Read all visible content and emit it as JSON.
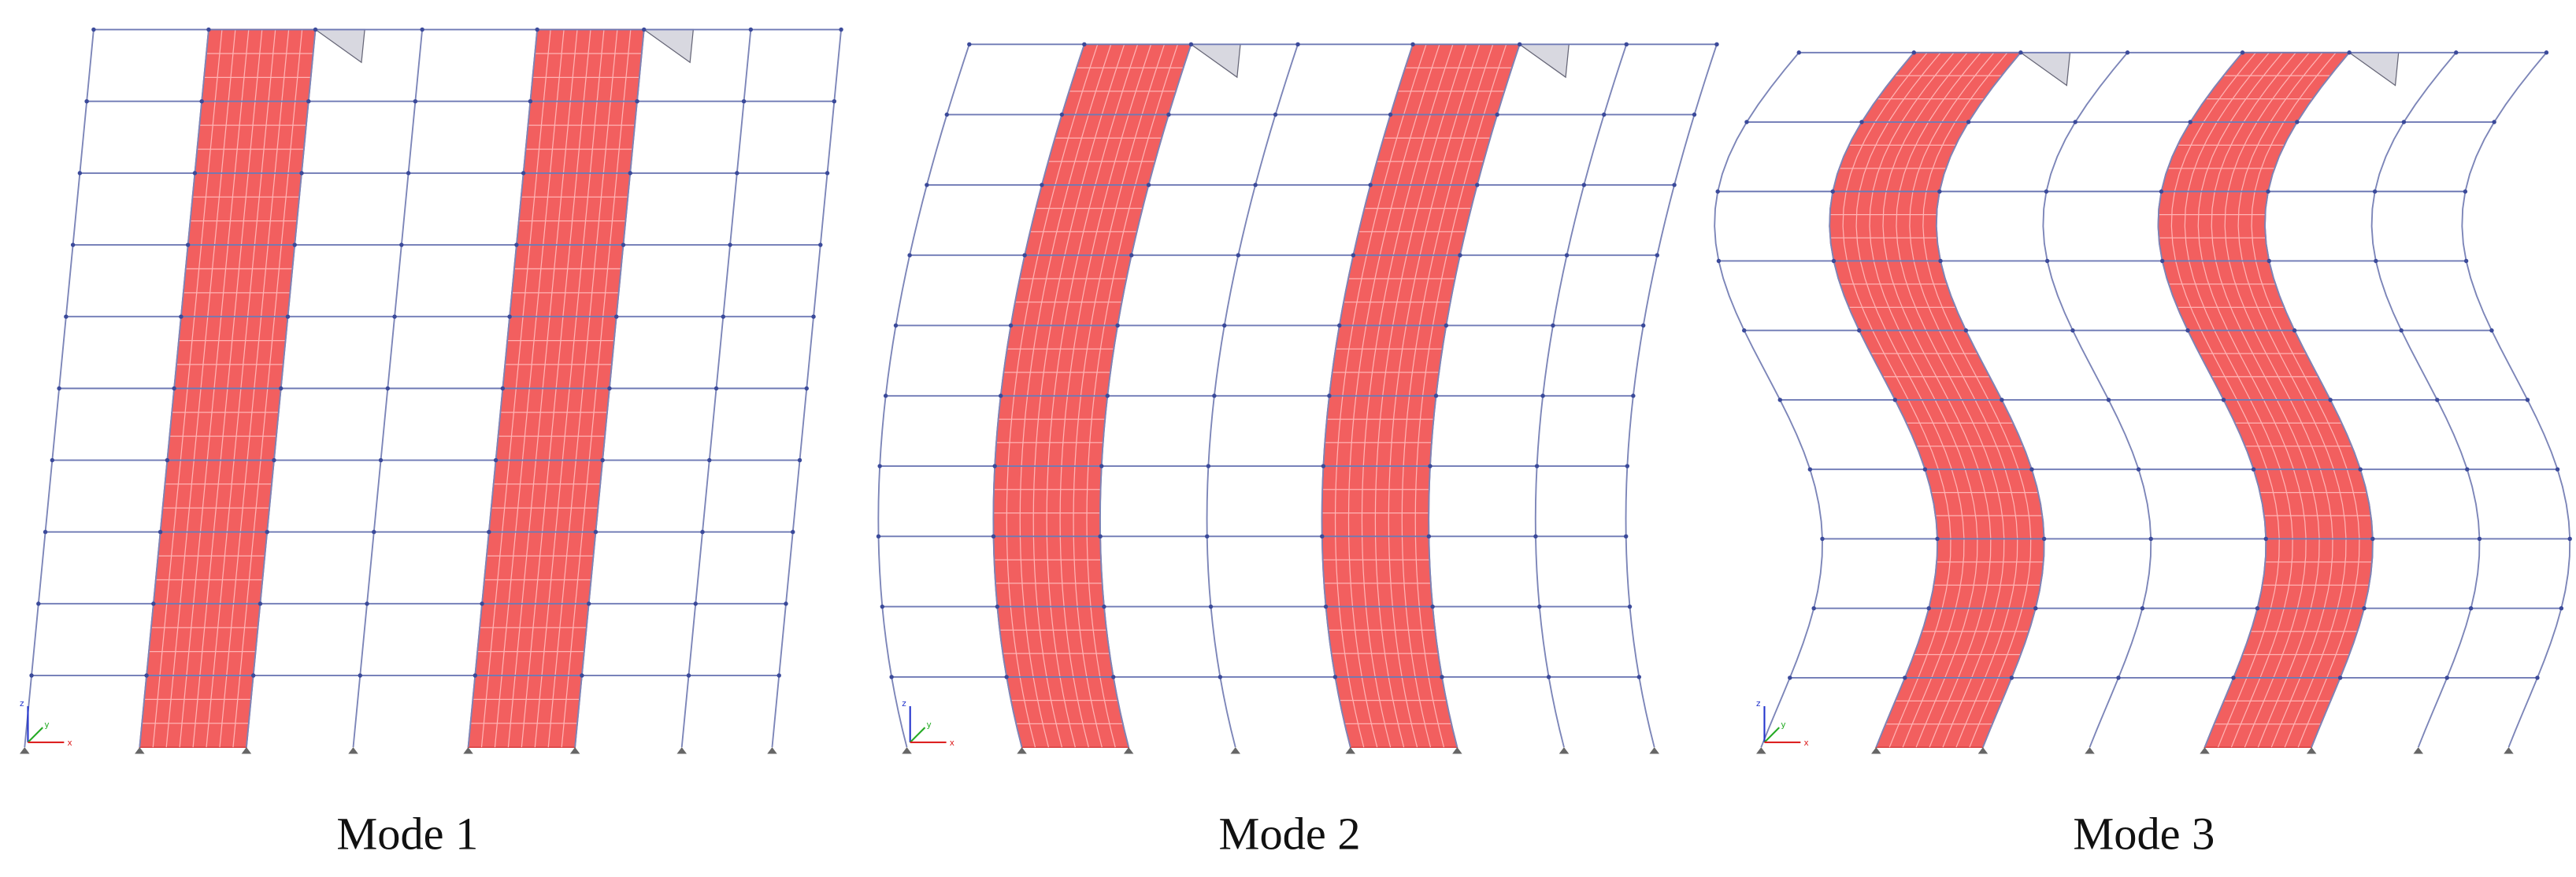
{
  "panels": [
    {
      "label": "Mode 1",
      "triad_labels": [
        "z",
        "y",
        "x"
      ]
    },
    {
      "label": "Mode 2",
      "triad_labels": [
        "z",
        "y",
        "x"
      ]
    },
    {
      "label": "Mode 3",
      "triad_labels": [
        "z",
        "y",
        "x"
      ]
    }
  ]
}
